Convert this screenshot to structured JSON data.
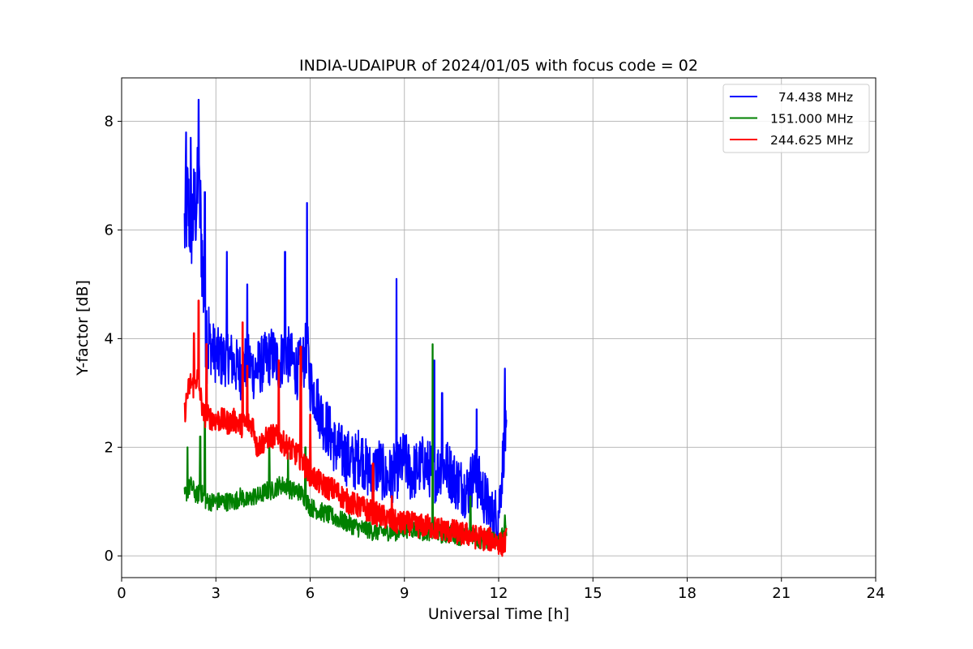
{
  "chart_data": {
    "type": "line",
    "title": "INDIA-UDAIPUR of 2024/01/05 with focus code = 02",
    "xlabel": "Universal Time [h]",
    "ylabel": "Y-factor [dB]",
    "xlim": [
      0,
      24
    ],
    "ylim": [
      -0.4,
      8.8
    ],
    "xticks": [
      0,
      3,
      6,
      9,
      12,
      15,
      18,
      21,
      24
    ],
    "yticks": [
      0,
      2,
      4,
      6,
      8
    ],
    "grid": true,
    "legend_position": "top-right",
    "series": [
      {
        "name": "74.438 MHz",
        "legend_label": "  74.438 MHz",
        "color": "#0000ff",
        "x": [
          2.0,
          2.1,
          2.2,
          2.3,
          2.4,
          2.5,
          2.6,
          2.7,
          2.8,
          3.0,
          3.2,
          3.4,
          3.6,
          3.8,
          4.0,
          4.2,
          4.4,
          4.6,
          4.8,
          5.0,
          5.2,
          5.4,
          5.6,
          5.8,
          5.9,
          6.0,
          6.2,
          6.4,
          6.6,
          6.8,
          7.0,
          7.2,
          7.4,
          7.6,
          7.8,
          8.0,
          8.2,
          8.4,
          8.6,
          8.8,
          9.0,
          9.2,
          9.4,
          9.6,
          9.8,
          10.0,
          10.2,
          10.4,
          10.6,
          10.8,
          11.0,
          11.2,
          11.4,
          11.6,
          11.8,
          12.0,
          12.1,
          12.2,
          12.25
        ],
        "y": [
          6.0,
          6.5,
          6.1,
          6.3,
          6.6,
          6.4,
          5.0,
          4.2,
          3.9,
          3.7,
          3.6,
          3.7,
          3.5,
          3.4,
          3.6,
          3.4,
          3.5,
          3.6,
          3.7,
          3.5,
          3.8,
          3.6,
          3.4,
          3.6,
          3.9,
          3.2,
          2.9,
          2.5,
          2.3,
          2.0,
          1.9,
          1.8,
          1.7,
          1.9,
          1.6,
          1.5,
          1.7,
          1.4,
          1.5,
          1.6,
          1.8,
          1.5,
          1.6,
          1.7,
          1.6,
          1.5,
          1.7,
          1.6,
          1.4,
          1.3,
          1.2,
          1.5,
          1.3,
          1.0,
          0.7,
          0.8,
          1.5,
          2.3,
          2.0
        ],
        "spikes": [
          [
            2.05,
            7.8
          ],
          [
            2.2,
            7.7
          ],
          [
            2.45,
            8.4
          ],
          [
            2.65,
            6.7
          ],
          [
            3.35,
            5.6
          ],
          [
            4.0,
            5.0
          ],
          [
            5.2,
            5.6
          ],
          [
            5.9,
            6.5
          ],
          [
            8.75,
            5.1
          ],
          [
            9.95,
            3.6
          ],
          [
            10.2,
            3.0
          ],
          [
            11.3,
            2.7
          ],
          [
            12.2,
            3.45
          ]
        ]
      },
      {
        "name": "151.000 MHz",
        "legend_label": "151.000 MHz",
        "color": "#008000",
        "x": [
          2.0,
          2.1,
          2.2,
          2.3,
          2.4,
          2.5,
          2.6,
          2.7,
          2.8,
          3.0,
          3.2,
          3.4,
          3.6,
          3.8,
          4.0,
          4.2,
          4.4,
          4.6,
          4.8,
          5.0,
          5.2,
          5.4,
          5.6,
          5.8,
          6.0,
          6.2,
          6.4,
          6.6,
          6.8,
          7.0,
          7.2,
          7.4,
          7.6,
          7.8,
          8.0,
          8.2,
          8.4,
          8.6,
          8.8,
          9.0,
          9.2,
          9.4,
          9.6,
          9.8,
          10.0,
          10.2,
          10.4,
          10.6,
          10.8,
          11.0,
          11.2,
          11.4,
          11.6,
          11.8,
          12.0,
          12.1,
          12.2,
          12.25
        ],
        "y": [
          1.1,
          1.2,
          1.3,
          1.2,
          1.1,
          1.2,
          1.1,
          1.0,
          1.0,
          1.0,
          1.0,
          1.0,
          1.0,
          1.1,
          1.0,
          1.1,
          1.1,
          1.2,
          1.2,
          1.3,
          1.3,
          1.2,
          1.2,
          1.1,
          0.9,
          0.85,
          0.8,
          0.75,
          0.7,
          0.65,
          0.6,
          0.55,
          0.5,
          0.5,
          0.45,
          0.45,
          0.45,
          0.45,
          0.45,
          0.5,
          0.5,
          0.5,
          0.45,
          0.45,
          0.45,
          0.4,
          0.4,
          0.4,
          0.35,
          0.35,
          0.35,
          0.3,
          0.3,
          0.3,
          0.35,
          0.35,
          0.4,
          0.45
        ],
        "spikes": [
          [
            2.1,
            2.0
          ],
          [
            2.5,
            2.2
          ],
          [
            2.65,
            2.5
          ],
          [
            4.7,
            2.0
          ],
          [
            5.3,
            1.9
          ],
          [
            5.85,
            2.0
          ],
          [
            9.9,
            3.9
          ],
          [
            11.1,
            1.1
          ],
          [
            12.2,
            0.75
          ]
        ]
      },
      {
        "name": "244.625 MHz",
        "legend_label": "244.625 MHz",
        "color": "#ff0000",
        "x": [
          2.0,
          2.1,
          2.2,
          2.3,
          2.4,
          2.5,
          2.6,
          2.8,
          3.0,
          3.2,
          3.4,
          3.6,
          3.8,
          4.0,
          4.2,
          4.3,
          4.5,
          4.7,
          4.9,
          5.1,
          5.3,
          5.5,
          5.7,
          5.9,
          6.0,
          6.2,
          6.4,
          6.6,
          6.8,
          7.0,
          7.2,
          7.4,
          7.6,
          7.8,
          8.0,
          8.2,
          8.4,
          8.6,
          8.8,
          9.0,
          9.2,
          9.4,
          9.6,
          9.8,
          10.0,
          10.2,
          10.4,
          10.6,
          10.8,
          11.0,
          11.2,
          11.4,
          11.6,
          11.8,
          12.0,
          12.1,
          12.2,
          12.25
        ],
        "y": [
          2.6,
          3.0,
          3.2,
          3.1,
          3.3,
          3.0,
          2.6,
          2.55,
          2.5,
          2.5,
          2.45,
          2.5,
          2.4,
          2.45,
          2.4,
          2.0,
          2.1,
          2.2,
          2.2,
          2.1,
          2.0,
          1.9,
          1.8,
          1.6,
          1.5,
          1.4,
          1.3,
          1.25,
          1.2,
          1.1,
          1.0,
          0.95,
          0.9,
          0.85,
          0.8,
          0.75,
          0.7,
          0.65,
          0.6,
          0.6,
          0.6,
          0.55,
          0.55,
          0.55,
          0.5,
          0.5,
          0.45,
          0.45,
          0.4,
          0.4,
          0.35,
          0.35,
          0.3,
          0.3,
          0.25,
          0.2,
          0.25,
          0.3
        ],
        "spikes": [
          [
            2.3,
            4.1
          ],
          [
            2.45,
            4.7
          ],
          [
            2.7,
            3.9
          ],
          [
            3.85,
            4.3
          ],
          [
            4.0,
            3.5
          ],
          [
            5.0,
            3.6
          ],
          [
            5.7,
            3.85
          ],
          [
            6.0,
            2.6
          ],
          [
            8.0,
            1.7
          ],
          [
            8.6,
            1.1
          ]
        ]
      }
    ]
  }
}
